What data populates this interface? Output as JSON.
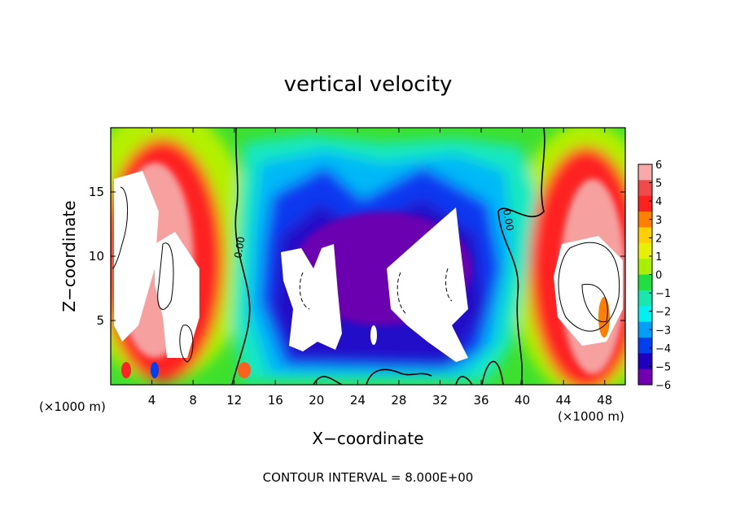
{
  "chart_data": {
    "type": "heatmap",
    "title": "vertical velocity",
    "xlabel": "X−coordinate",
    "ylabel": "Z−coordinate",
    "x_unit": "(×1000 m)",
    "xlim": [
      0,
      50
    ],
    "ylim": [
      0,
      20
    ],
    "x_ticks": [
      4,
      8,
      12,
      16,
      20,
      24,
      28,
      32,
      36,
      40,
      44,
      48
    ],
    "y_ticks": [
      5,
      10,
      15
    ],
    "colorbar": {
      "range": [
        -6,
        6
      ],
      "ticks": [
        "6",
        "5",
        "4",
        "3",
        "2",
        "1",
        "0",
        "−1",
        "−2",
        "−3",
        "−4",
        "−5",
        "−6"
      ],
      "colors": [
        "#f7a8a8",
        "#f04a4a",
        "#ff2020",
        "#ff8000",
        "#ffd000",
        "#e6f000",
        "#a8f000",
        "#20e040",
        "#18e8b0",
        "#00f0f0",
        "#00a0f8",
        "#0040f0",
        "#2000c0",
        "#7000b0"
      ]
    },
    "contour_labels": [
      "0.00",
      "0.00"
    ],
    "contour_interval_text": "CONTOUR INTERVAL = 8.000E+00",
    "grid": false
  }
}
